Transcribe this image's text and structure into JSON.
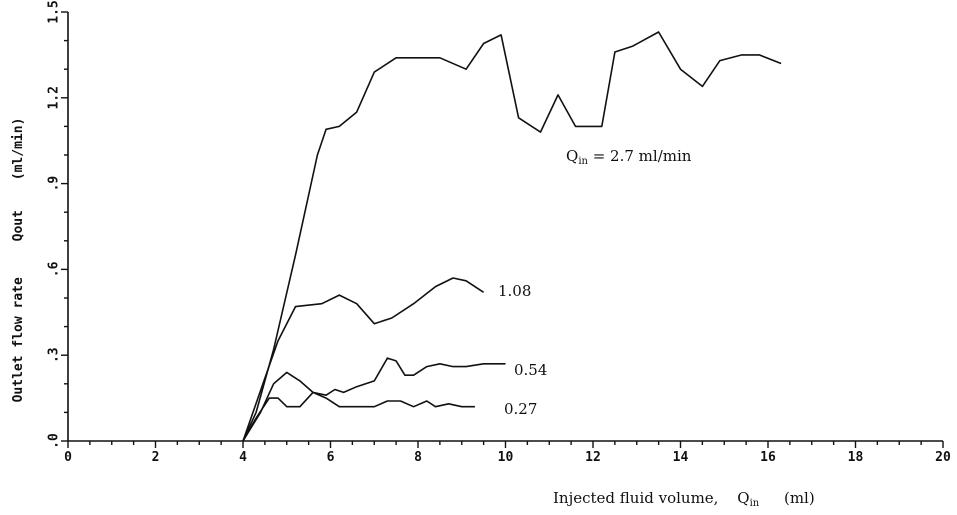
{
  "chart_data": {
    "type": "line",
    "title": "",
    "xlabel": "Injected fluid volume,",
    "xlabel_symbol": "Q",
    "xlabel_subscript": "in",
    "xlabel_unit": "(ml)",
    "ylabel_parts": [
      "Outlet flow rate",
      "Qout",
      "(ml/min)"
    ],
    "xlim": [
      0,
      20
    ],
    "ylim": [
      0,
      1.5
    ],
    "x_ticks": [
      0,
      2,
      4,
      6,
      8,
      10,
      12,
      14,
      16,
      18,
      20
    ],
    "x_tick_labels": [
      "0",
      "2",
      "4",
      "6",
      "8",
      "10",
      "12",
      "14",
      "16",
      "18",
      "20"
    ],
    "y_ticks": [
      0,
      0.3,
      0.6,
      0.9,
      1.2,
      1.5
    ],
    "y_tick_labels": [
      ".0",
      ".3",
      ".6",
      ".9",
      "1.2",
      "1.5"
    ],
    "grid": false,
    "series": [
      {
        "name": "Qin = 2.7 ml/min",
        "label_prefix": "Q",
        "label_subscript": "in",
        "label_suffix": " = 2.7 ml/min",
        "points": [
          [
            4.0,
            0.0
          ],
          [
            4.3,
            0.1
          ],
          [
            4.7,
            0.32
          ],
          [
            5.2,
            0.65
          ],
          [
            5.7,
            1.0
          ],
          [
            5.9,
            1.09
          ],
          [
            6.2,
            1.1
          ],
          [
            6.6,
            1.15
          ],
          [
            7.0,
            1.29
          ],
          [
            7.5,
            1.34
          ],
          [
            8.0,
            1.34
          ],
          [
            8.5,
            1.34
          ],
          [
            9.1,
            1.3
          ],
          [
            9.5,
            1.39
          ],
          [
            9.9,
            1.42
          ],
          [
            10.3,
            1.13
          ],
          [
            10.8,
            1.08
          ],
          [
            11.2,
            1.21
          ],
          [
            11.6,
            1.1
          ],
          [
            12.2,
            1.1
          ],
          [
            12.5,
            1.36
          ],
          [
            12.9,
            1.38
          ],
          [
            13.5,
            1.43
          ],
          [
            14.0,
            1.3
          ],
          [
            14.5,
            1.24
          ],
          [
            14.9,
            1.33
          ],
          [
            15.4,
            1.35
          ],
          [
            15.8,
            1.35
          ],
          [
            16.3,
            1.32
          ]
        ]
      },
      {
        "name": "1.08",
        "points": [
          [
            4.0,
            0.0
          ],
          [
            4.5,
            0.22
          ],
          [
            4.8,
            0.35
          ],
          [
            5.2,
            0.47
          ],
          [
            5.8,
            0.48
          ],
          [
            6.2,
            0.51
          ],
          [
            6.6,
            0.48
          ],
          [
            7.0,
            0.41
          ],
          [
            7.4,
            0.43
          ],
          [
            7.9,
            0.48
          ],
          [
            8.4,
            0.54
          ],
          [
            8.8,
            0.57
          ],
          [
            9.1,
            0.56
          ],
          [
            9.5,
            0.52
          ]
        ]
      },
      {
        "name": "0.54",
        "points": [
          [
            4.0,
            0.0
          ],
          [
            4.4,
            0.1
          ],
          [
            4.7,
            0.2
          ],
          [
            5.0,
            0.24
          ],
          [
            5.3,
            0.21
          ],
          [
            5.6,
            0.17
          ],
          [
            5.9,
            0.16
          ],
          [
            6.1,
            0.18
          ],
          [
            6.3,
            0.17
          ],
          [
            6.6,
            0.19
          ],
          [
            7.0,
            0.21
          ],
          [
            7.3,
            0.29
          ],
          [
            7.5,
            0.28
          ],
          [
            7.7,
            0.23
          ],
          [
            7.9,
            0.23
          ],
          [
            8.2,
            0.26
          ],
          [
            8.5,
            0.27
          ],
          [
            8.8,
            0.26
          ],
          [
            9.1,
            0.26
          ],
          [
            9.5,
            0.27
          ],
          [
            10.0,
            0.27
          ]
        ]
      },
      {
        "name": "0.27",
        "points": [
          [
            4.0,
            0.0
          ],
          [
            4.3,
            0.08
          ],
          [
            4.6,
            0.15
          ],
          [
            4.8,
            0.15
          ],
          [
            5.0,
            0.12
          ],
          [
            5.3,
            0.12
          ],
          [
            5.6,
            0.17
          ],
          [
            5.9,
            0.15
          ],
          [
            6.2,
            0.12
          ],
          [
            6.6,
            0.12
          ],
          [
            7.0,
            0.12
          ],
          [
            7.3,
            0.14
          ],
          [
            7.6,
            0.14
          ],
          [
            7.9,
            0.12
          ],
          [
            8.2,
            0.14
          ],
          [
            8.4,
            0.12
          ],
          [
            8.7,
            0.13
          ],
          [
            9.0,
            0.12
          ],
          [
            9.3,
            0.12
          ]
        ]
      }
    ]
  }
}
